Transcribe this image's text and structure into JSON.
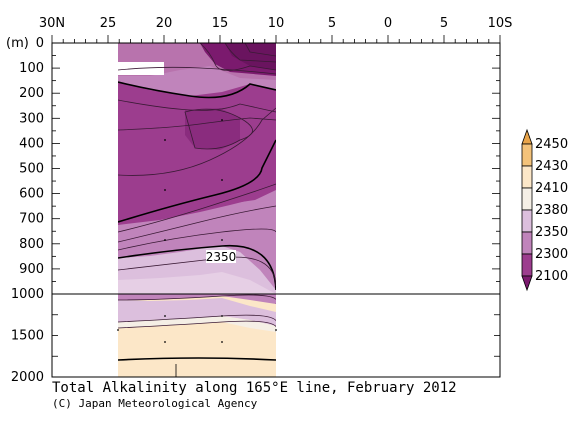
{
  "chart_data": {
    "type": "contour",
    "title": "Total Alkalinity along 165°E line, February 2012",
    "credit": "(C) Japan Meteorological Agency",
    "x_axis": {
      "ticks": [
        "30N",
        "25",
        "20",
        "15",
        "10",
        "5",
        "0",
        "5",
        "10S"
      ],
      "range_lat": [
        30,
        -10
      ]
    },
    "y_axis": {
      "unit_label": "(m)",
      "upper_ticks": [
        0,
        100,
        200,
        300,
        400,
        500,
        600,
        700,
        800,
        900,
        1000
      ],
      "lower_ticks": [
        1500,
        2000
      ],
      "upper_range": [
        0,
        1000
      ],
      "lower_range": [
        1000,
        2000
      ]
    },
    "data_extent_lat": [
      25,
      10
    ],
    "contour_label": "2350",
    "colorbar": {
      "levels": [
        2100,
        2300,
        2350,
        2380,
        2410,
        2430,
        2450
      ],
      "labels": [
        "2100",
        "2300",
        "2350",
        "2380",
        "2410",
        "2430",
        "2450"
      ],
      "colors": [
        "#7b1a6e",
        "#9c3d8e",
        "#c084bb",
        "#dcbfdd",
        "#f5efe6",
        "#fce7c8",
        "#f3c27a",
        "#e8a44a"
      ]
    },
    "colors": {
      "deep": "#9c3d8e",
      "mid": "#c084bb",
      "light": "#dcbfdd",
      "pale": "#fce7c8",
      "darkest": "#7b1a6e"
    }
  }
}
